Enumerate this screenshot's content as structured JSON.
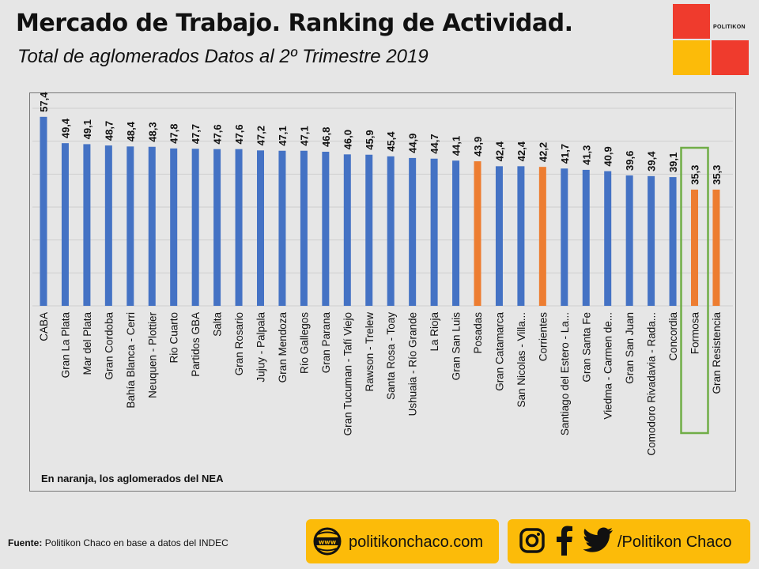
{
  "header": {
    "title": "Mercado de Trabajo. Ranking de Actividad.",
    "subtitle": "Total de aglomerados Datos al 2º Trimestre 2019"
  },
  "logo": {
    "brand": "POLITIKON"
  },
  "chart_data": {
    "type": "bar",
    "categories": [
      "CABA",
      "Gran La Plata",
      "Mar del Plata",
      "Gran Cordoba",
      "Bahía Blanca - Cerri",
      "Neuquen - Plottier",
      "Rio Cuarto",
      "Partidos GBA",
      "Salta",
      "Gran Rosario",
      "Jujuy - Palpala",
      "Gran Mendoza",
      "Río Gallegos",
      "Gran Parana",
      "Gran Tucuman - Tafí Viejo",
      "Rawson - Trelew",
      "Santa Rosa - Toay",
      "Ushuaia - Río Grande",
      "La Rioja",
      "Gran San Luis",
      "Posadas",
      "Gran Catamarca",
      "San Nicolas - Villa...",
      "Corrientes",
      "Santiago del Estero - La...",
      "Gran Santa Fe",
      "Viedma - Carmen de...",
      "Gran San Juan",
      "Comodoro Rivadavia - Rada...",
      "Concordia",
      "Formosa",
      "Gran Resistencia"
    ],
    "values": [
      57.4,
      49.4,
      49.1,
      48.7,
      48.4,
      48.3,
      47.8,
      47.7,
      47.6,
      47.6,
      47.2,
      47.1,
      47.1,
      46.8,
      46.0,
      45.9,
      45.4,
      44.9,
      44.7,
      44.1,
      43.9,
      42.4,
      42.4,
      42.2,
      41.7,
      41.3,
      40.9,
      39.6,
      39.4,
      39.1,
      35.3,
      35.3
    ],
    "value_labels": [
      "57,4",
      "49,4",
      "49,1",
      "48,7",
      "48,4",
      "48,3",
      "47,8",
      "47,7",
      "47,6",
      "47,6",
      "47,2",
      "47,1",
      "47,1",
      "46,8",
      "46,0",
      "45,9",
      "45,4",
      "44,9",
      "44,7",
      "44,1",
      "43,9",
      "42,4",
      "42,4",
      "42,2",
      "41,7",
      "41,3",
      "40,9",
      "39,6",
      "39,4",
      "39,1",
      "35,3",
      "35,3"
    ],
    "highlight": [
      false,
      false,
      false,
      false,
      false,
      false,
      false,
      false,
      false,
      false,
      false,
      false,
      false,
      false,
      false,
      false,
      false,
      false,
      false,
      false,
      true,
      false,
      false,
      true,
      false,
      false,
      false,
      false,
      false,
      false,
      true,
      true
    ],
    "highlight_box_category": "Formosa",
    "ylim": [
      0,
      60
    ],
    "grid": true,
    "colors": {
      "default": "#4472c4",
      "highlight": "#ed7d31",
      "box": "#70ad47"
    },
    "note": "En naranja, los aglomerados del NEA"
  },
  "footer": {
    "source_label": "Fuente:",
    "source_text": "Politikon Chaco en base a datos del INDEC",
    "website": "politikonchaco.com",
    "social": "/Politikon Chaco",
    "icons": [
      "www-icon",
      "instagram-icon",
      "facebook-icon",
      "twitter-icon"
    ]
  }
}
